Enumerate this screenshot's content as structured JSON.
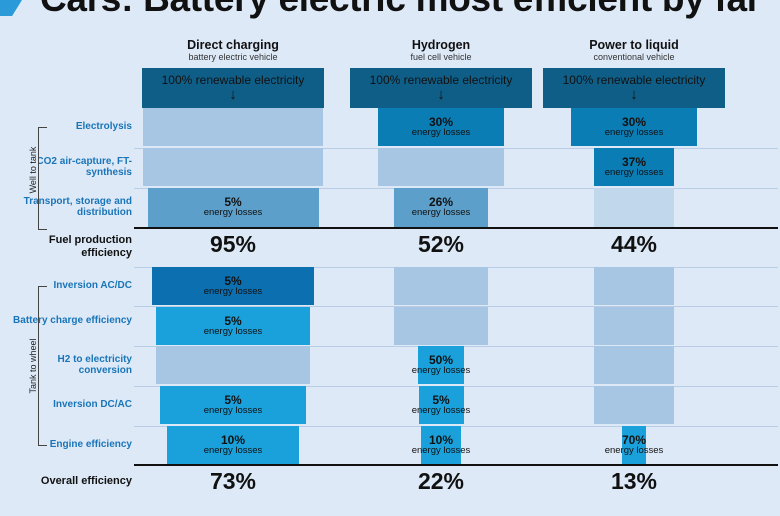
{
  "title": "Cars: Battery electric most efficient by far",
  "source_text": "100% renewable electricity",
  "loss_text": "energy losses",
  "group_labels": [
    "Well to tank",
    "Tank to wheel"
  ],
  "columns": [
    {
      "name": "Direct charging",
      "sub": "battery electric vehicle"
    },
    {
      "name": "Hydrogen",
      "sub": "fuel cell vehicle"
    },
    {
      "name": "Power to liquid",
      "sub": "conventional vehicle"
    }
  ],
  "rows": [
    {
      "label": "Electrolysis"
    },
    {
      "label": "CO2 air-capture, FT-synthesis"
    },
    {
      "label": "Transport, storage and distribution"
    },
    {
      "label": "Inversion AC/DC"
    },
    {
      "label": "Battery charge efficiency"
    },
    {
      "label": "H2 to electricity conversion"
    },
    {
      "label": "Inversion DC/AC"
    },
    {
      "label": "Engine efficiency"
    }
  ],
  "summary_labels": {
    "fuel": "Fuel production efficiency",
    "overall": "Overall efficiency"
  },
  "colors": {
    "source": "#0f5e87",
    "step1": "#0b7db5",
    "step2": "#1aa1db",
    "pass_dark": "#5b9fca",
    "pass_mid": "#a7c6e3",
    "pass_light": "#c1d7ec",
    "engine_pass": "#a9cfee",
    "text_blue": "#1a75b8"
  },
  "chart_data": {
    "type": "table",
    "title": "Cars: Battery electric most efficient by far",
    "categories": [
      "Direct charging",
      "Hydrogen",
      "Power to liquid"
    ],
    "steps": [
      {
        "step": "Electrolysis",
        "values": [
          "",
          "30%",
          "30%"
        ]
      },
      {
        "step": "CO2 air-capture, FT-synthesis",
        "values": [
          "",
          "",
          "37%"
        ]
      },
      {
        "step": "Transport, storage and distribution",
        "values": [
          "5%",
          "26%",
          ""
        ]
      },
      {
        "step": "Inversion AC/DC",
        "values": [
          "5%",
          "",
          ""
        ]
      },
      {
        "step": "Battery charge efficiency",
        "values": [
          "5%",
          "",
          ""
        ]
      },
      {
        "step": "H2 to electricity conversion",
        "values": [
          "",
          "50%",
          ""
        ]
      },
      {
        "step": "Inversion DC/AC",
        "values": [
          "5%",
          "5%",
          ""
        ]
      },
      {
        "step": "Engine efficiency",
        "values": [
          "10%",
          "10%",
          "70%"
        ]
      }
    ],
    "fuel_production_efficiency": [
      "95%",
      "52%",
      "44%"
    ],
    "overall_efficiency": [
      "73%",
      "22%",
      "13%"
    ],
    "remaining_share": {
      "Direct charging": [
        100,
        100,
        95,
        90,
        86,
        86,
        81,
        73
      ],
      "Hydrogen": [
        70,
        70,
        52,
        52,
        52,
        26,
        25,
        22
      ],
      "Power to liquid": [
        70,
        44,
        44,
        44,
        44,
        44,
        44,
        13
      ]
    }
  }
}
